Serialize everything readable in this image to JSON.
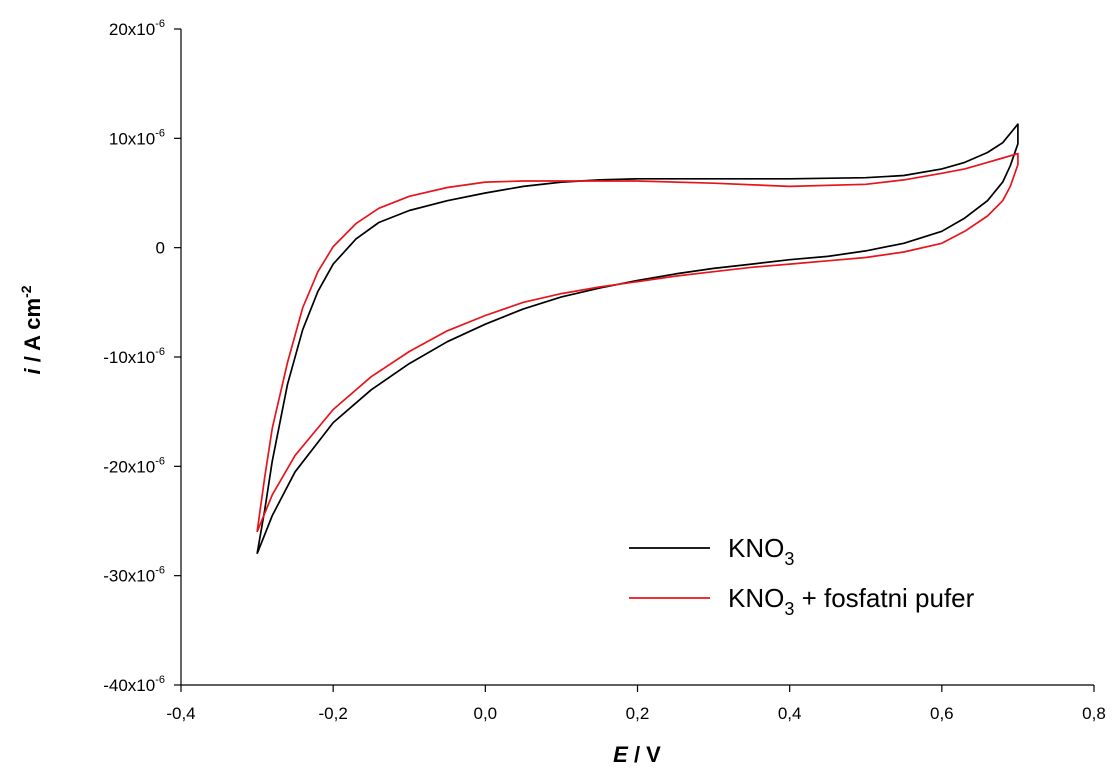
{
  "chart_data": {
    "type": "line",
    "xlabel": {
      "symbol": "E",
      "unit": " / V"
    },
    "ylabel": {
      "symbol": "i",
      "unit": " / A cm",
      "sup": "-2"
    },
    "xlim": [
      -0.4,
      0.8
    ],
    "ylim": [
      -4e-05,
      2e-05
    ],
    "x_ticks": [
      {
        "value": -0.4,
        "label": "-0,4"
      },
      {
        "value": -0.2,
        "label": "-0,2"
      },
      {
        "value": 0.0,
        "label": "0,0"
      },
      {
        "value": 0.2,
        "label": "0,2"
      },
      {
        "value": 0.4,
        "label": "0,4"
      },
      {
        "value": 0.6,
        "label": "0,6"
      },
      {
        "value": 0.8,
        "label": "0,8"
      }
    ],
    "y_ticks": [
      {
        "value": 2e-05,
        "mant": "20x10",
        "exp": "-6"
      },
      {
        "value": 1e-05,
        "mant": "10x10",
        "exp": "-6"
      },
      {
        "value": 0,
        "mant": "0",
        "exp": ""
      },
      {
        "value": -1e-05,
        "mant": "-10x10",
        "exp": "-6"
      },
      {
        "value": -2e-05,
        "mant": "-20x10",
        "exp": "-6"
      },
      {
        "value": -3e-05,
        "mant": "-30x10",
        "exp": "-6"
      },
      {
        "value": -4e-05,
        "mant": "-40x10",
        "exp": "-6"
      }
    ],
    "grid": false,
    "legend_position": "bottom-right",
    "series": [
      {
        "label_main": "KNO",
        "label_sub": "3",
        "label_rest": "",
        "color": "#000000",
        "points": [
          [
            -0.3,
            -2.8e-05
          ],
          [
            -0.29,
            -2.4e-05
          ],
          [
            -0.28,
            -1.95e-05
          ],
          [
            -0.26,
            -1.25e-05
          ],
          [
            -0.24,
            -7.5e-06
          ],
          [
            -0.22,
            -4e-06
          ],
          [
            -0.2,
            -1.5e-06
          ],
          [
            -0.17,
            8e-07
          ],
          [
            -0.14,
            2.3e-06
          ],
          [
            -0.1,
            3.4e-06
          ],
          [
            -0.05,
            4.3e-06
          ],
          [
            0.0,
            5e-06
          ],
          [
            0.05,
            5.6e-06
          ],
          [
            0.1,
            6e-06
          ],
          [
            0.15,
            6.2e-06
          ],
          [
            0.2,
            6.3e-06
          ],
          [
            0.3,
            6.3e-06
          ],
          [
            0.4,
            6.3e-06
          ],
          [
            0.5,
            6.4e-06
          ],
          [
            0.55,
            6.6e-06
          ],
          [
            0.6,
            7.2e-06
          ],
          [
            0.63,
            7.8e-06
          ],
          [
            0.66,
            8.7e-06
          ],
          [
            0.68,
            9.6e-06
          ],
          [
            0.7,
            1.13e-05
          ],
          [
            0.7,
            9.5e-06
          ],
          [
            0.69,
            7.5e-06
          ],
          [
            0.68,
            6e-06
          ],
          [
            0.66,
            4.3e-06
          ],
          [
            0.63,
            2.7e-06
          ],
          [
            0.6,
            1.5e-06
          ],
          [
            0.55,
            4e-07
          ],
          [
            0.5,
            -3e-07
          ],
          [
            0.45,
            -8e-07
          ],
          [
            0.4,
            -1.1e-06
          ],
          [
            0.35,
            -1.5e-06
          ],
          [
            0.3,
            -1.9e-06
          ],
          [
            0.25,
            -2.4e-06
          ],
          [
            0.2,
            -3e-06
          ],
          [
            0.15,
            -3.7e-06
          ],
          [
            0.1,
            -4.5e-06
          ],
          [
            0.05,
            -5.6e-06
          ],
          [
            0.0,
            -7e-06
          ],
          [
            -0.05,
            -8.6e-06
          ],
          [
            -0.1,
            -1.06e-05
          ],
          [
            -0.15,
            -1.3e-05
          ],
          [
            -0.2,
            -1.6e-05
          ],
          [
            -0.25,
            -2.05e-05
          ],
          [
            -0.28,
            -2.45e-05
          ],
          [
            -0.3,
            -2.8e-05
          ]
        ]
      },
      {
        "label_main": "KNO",
        "label_sub": "3",
        "label_rest": " + fosfatni pufer",
        "color": "#e8141b",
        "points": [
          [
            -0.3,
            -2.6e-05
          ],
          [
            -0.29,
            -2.1e-05
          ],
          [
            -0.28,
            -1.65e-05
          ],
          [
            -0.26,
            -1.05e-05
          ],
          [
            -0.24,
            -5.5e-06
          ],
          [
            -0.22,
            -2.2e-06
          ],
          [
            -0.2,
            1e-07
          ],
          [
            -0.17,
            2.2e-06
          ],
          [
            -0.14,
            3.6e-06
          ],
          [
            -0.1,
            4.7e-06
          ],
          [
            -0.05,
            5.5e-06
          ],
          [
            0.0,
            6e-06
          ],
          [
            0.05,
            6.1e-06
          ],
          [
            0.1,
            6.1e-06
          ],
          [
            0.15,
            6.1e-06
          ],
          [
            0.2,
            6.1e-06
          ],
          [
            0.3,
            5.9e-06
          ],
          [
            0.4,
            5.6e-06
          ],
          [
            0.5,
            5.8e-06
          ],
          [
            0.55,
            6.2e-06
          ],
          [
            0.6,
            6.8e-06
          ],
          [
            0.63,
            7.2e-06
          ],
          [
            0.66,
            7.8e-06
          ],
          [
            0.68,
            8.2e-06
          ],
          [
            0.7,
            8.6e-06
          ],
          [
            0.7,
            7.6e-06
          ],
          [
            0.69,
            5.6e-06
          ],
          [
            0.68,
            4.3e-06
          ],
          [
            0.66,
            2.9e-06
          ],
          [
            0.63,
            1.5e-06
          ],
          [
            0.6,
            4e-07
          ],
          [
            0.55,
            -4e-07
          ],
          [
            0.5,
            -9e-07
          ],
          [
            0.45,
            -1.2e-06
          ],
          [
            0.4,
            -1.5e-06
          ],
          [
            0.35,
            -1.8e-06
          ],
          [
            0.3,
            -2.2e-06
          ],
          [
            0.25,
            -2.6e-06
          ],
          [
            0.2,
            -3.1e-06
          ],
          [
            0.15,
            -3.6e-06
          ],
          [
            0.1,
            -4.2e-06
          ],
          [
            0.05,
            -5e-06
          ],
          [
            0.0,
            -6.2e-06
          ],
          [
            -0.05,
            -7.6e-06
          ],
          [
            -0.1,
            -9.5e-06
          ],
          [
            -0.15,
            -1.18e-05
          ],
          [
            -0.2,
            -1.48e-05
          ],
          [
            -0.25,
            -1.9e-05
          ],
          [
            -0.28,
            -2.26e-05
          ],
          [
            -0.3,
            -2.6e-05
          ]
        ]
      }
    ]
  }
}
